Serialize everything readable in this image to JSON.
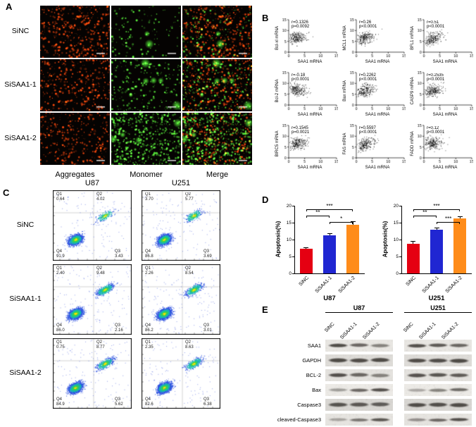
{
  "panels": {
    "A": {
      "label": "A",
      "row_labels": [
        "SiNC",
        "SiSAA1-1",
        "SiSAA1-2"
      ],
      "col_labels": [
        "Aggregates",
        "Monomer",
        "Merge"
      ]
    },
    "B": {
      "label": "B"
    },
    "C": {
      "label": "C",
      "col_labels": [
        "U87",
        "U251"
      ],
      "row_labels": [
        "SiNC",
        "SiSAA1-1",
        "SiSAA1-2"
      ],
      "quadrant_labels": [
        "Q1",
        "Q2",
        "Q3",
        "Q4"
      ],
      "plots": [
        {
          "cell_line": "U87",
          "group": "SiNC",
          "Q1": "0.64",
          "Q2": "4.02",
          "Q3": "3.43",
          "Q4": "91.9"
        },
        {
          "cell_line": "U251",
          "group": "SiNC",
          "Q1": "3.70",
          "Q2": "5.77",
          "Q3": "3.69",
          "Q4": "86.8"
        },
        {
          "cell_line": "U87",
          "group": "SiSAA1-1",
          "Q1": "2.40",
          "Q2": "9.48",
          "Q3": "2.16",
          "Q4": "86.0"
        },
        {
          "cell_line": "U251",
          "group": "SiSAA1-1",
          "Q1": "2.26",
          "Q2": "8.54",
          "Q3": "3.01",
          "Q4": "86.2"
        },
        {
          "cell_line": "U87",
          "group": "SiSAA1-2",
          "Q1": "0.75",
          "Q2": "8.77",
          "Q3": "5.62",
          "Q4": "84.9"
        },
        {
          "cell_line": "U251",
          "group": "SiSAA1-2",
          "Q1": "2.35",
          "Q2": "8.63",
          "Q3": "6.38",
          "Q4": "82.6"
        }
      ]
    },
    "D": {
      "label": "D"
    },
    "E": {
      "label": "E",
      "groups": [
        {
          "title": "U87",
          "lanes": [
            "SiNC",
            "SiSAA1-1",
            "SiSAA1-2"
          ]
        },
        {
          "title": "U251",
          "lanes": [
            "SiNC",
            "SiSAA1-1",
            "SiSAA1-2"
          ]
        }
      ],
      "rows": [
        {
          "label": "SAA1",
          "bands": [
            [
              0.95,
              0.7,
              0.5
            ],
            [
              0.9,
              0.82,
              0.72
            ]
          ]
        },
        {
          "label": "GAPDH",
          "bands": [
            [
              0.95,
              0.93,
              0.94
            ],
            [
              0.93,
              0.92,
              0.94
            ]
          ]
        },
        {
          "label": "BCL-2",
          "bands": [
            [
              0.9,
              0.7,
              0.5
            ],
            [
              0.88,
              0.84,
              0.8
            ]
          ]
        },
        {
          "label": "Bax",
          "bands": [
            [
              0.35,
              0.7,
              0.9
            ],
            [
              0.3,
              0.5,
              0.68
            ]
          ]
        },
        {
          "label": "Caspase3",
          "bands": [
            [
              0.85,
              0.8,
              0.75
            ],
            [
              0.9,
              0.88,
              0.9
            ]
          ]
        },
        {
          "label": "cleaved-Caspase3",
          "bands": [
            [
              0.3,
              0.6,
              0.85
            ],
            [
              0.4,
              0.7,
              0.9
            ]
          ]
        }
      ]
    }
  },
  "chart_data": [
    {
      "type": "scatter",
      "panel": "B",
      "ylabel": "Bcl-xl mRNA",
      "xlabel": "SAA1 mRNA",
      "annotation": {
        "r": "r=0.1326",
        "p": "p=0.0092"
      },
      "r_value": 0.13,
      "xlim": [
        0,
        15
      ],
      "ylim": [
        0,
        15
      ]
    },
    {
      "type": "scatter",
      "panel": "B",
      "ylabel": "MCL1 mRNA",
      "xlabel": "SAA1 mRNA",
      "annotation": {
        "r": "r=0.26",
        "p": "p<0.0001"
      },
      "r_value": 0.26,
      "xlim": [
        0,
        15
      ],
      "ylim": [
        0,
        15
      ]
    },
    {
      "type": "scatter",
      "panel": "B",
      "ylabel": "BFL1 mRNA",
      "xlabel": "SAA1 mRNA",
      "annotation": {
        "r": "r=0.51",
        "p": "p<0.0001"
      },
      "r_value": 0.51,
      "xlim": [
        0,
        15
      ],
      "ylim": [
        0,
        15
      ]
    },
    {
      "type": "scatter",
      "panel": "B",
      "ylabel": "Bcl-2 mRNA",
      "xlabel": "SAA1 mRNA",
      "annotation": {
        "r": "r=-0.18",
        "p": "p<0.0001"
      },
      "r_value": -0.18,
      "xlim": [
        0,
        15
      ],
      "ylim": [
        0,
        15
      ]
    },
    {
      "type": "scatter",
      "panel": "B",
      "ylabel": "Bax mRNA",
      "xlabel": "SAA1 mRNA",
      "annotation": {
        "r": "r=0.2262",
        "p": "p<0.0001"
      },
      "r_value": 0.23,
      "xlim": [
        0,
        15
      ],
      "ylim": [
        0,
        15
      ]
    },
    {
      "type": "scatter",
      "panel": "B",
      "ylabel": "CASP9 mRNA",
      "xlabel": "SAA1 mRNA",
      "annotation": {
        "r": "r=0.2535",
        "p": "p<0.0001"
      },
      "r_value": 0.25,
      "xlim": [
        0,
        15
      ],
      "ylim": [
        0,
        15
      ]
    },
    {
      "type": "scatter",
      "panel": "B",
      "ylabel": "BIRC5 mRNA",
      "xlabel": "SAA1 mRNA",
      "annotation": {
        "r": "r=0.1545",
        "p": "p=0.0021"
      },
      "r_value": 0.15,
      "xlim": [
        0,
        15
      ],
      "ylim": [
        0,
        15
      ]
    },
    {
      "type": "scatter",
      "panel": "B",
      "ylabel": "FAS mRNA",
      "xlabel": "SAA1 mRNA",
      "annotation": {
        "r": "r=0.5597",
        "p": "p<0.0001"
      },
      "r_value": 0.56,
      "xlim": [
        0,
        15
      ],
      "ylim": [
        0,
        15
      ]
    },
    {
      "type": "scatter",
      "panel": "B",
      "ylabel": "FADD mRNA",
      "xlabel": "SAA1 mRNA",
      "annotation": {
        "r": "r=0.12",
        "p": "p<0.0001"
      },
      "r_value": 0.12,
      "xlim": [
        0,
        15
      ],
      "ylim": [
        0,
        15
      ]
    },
    {
      "type": "bar",
      "panel": "D",
      "title": "U87",
      "ylabel": "Apoptosis(%)",
      "ylim": [
        0,
        20
      ],
      "tick_step": 5,
      "categories": [
        "SiNC",
        "SiSAA1-1",
        "SiSAA1-2"
      ],
      "values": [
        7.2,
        11.2,
        14.4
      ],
      "errors": [
        0.5,
        0.7,
        1.1
      ],
      "colors": [
        "#e50012",
        "#2026d2",
        "#ff8c1a"
      ],
      "significance": [
        {
          "pair": [
            0,
            2
          ],
          "label": "***",
          "level": 0
        },
        {
          "pair": [
            0,
            1
          ],
          "label": "**",
          "level": 1
        },
        {
          "pair": [
            1,
            2
          ],
          "label": "*",
          "level": 2
        }
      ]
    },
    {
      "type": "bar",
      "panel": "D",
      "title": "U251",
      "ylabel": "Apoptosis(%)",
      "ylim": [
        0,
        20
      ],
      "tick_step": 5,
      "categories": [
        "SiNC",
        "SiSAA1-1",
        "SiSAA1-2"
      ],
      "values": [
        8.8,
        13.0,
        16.2
      ],
      "errors": [
        0.8,
        0.6,
        0.7
      ],
      "colors": [
        "#e50012",
        "#2026d2",
        "#ff8c1a"
      ],
      "significance": [
        {
          "pair": [
            0,
            2
          ],
          "label": "***",
          "level": 0
        },
        {
          "pair": [
            0,
            1
          ],
          "label": "**",
          "level": 1
        },
        {
          "pair": [
            1,
            2
          ],
          "label": "***",
          "level": 2
        }
      ]
    }
  ]
}
